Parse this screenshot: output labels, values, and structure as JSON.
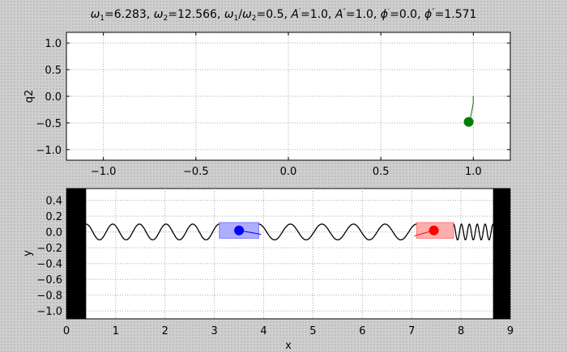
{
  "title": {
    "w1_sym": "ω",
    "w1_sub": "1",
    "w1_val": "=6.283, ",
    "w2_sym": "ω",
    "w2_sub": "2",
    "w2_val": "=12.566, ",
    "r_sym1": "ω",
    "r_sub1": "1",
    "r_slash": "/",
    "r_sym2": "ω",
    "r_sub2": "2",
    "r_val": "=0.5, ",
    "a1_sym": "A",
    "a1_prime": "′",
    "a1_val": "=1.0, ",
    "a2_sym": "A",
    "a2_prime": "″",
    "a2_val": "=1.0, ",
    "p1_sym": "ϕ",
    "p1_prime": "′",
    "p1_val": "=0.0, ",
    "p2_sym": "ϕ",
    "p2_prime": "″",
    "p2_val": "=1.571"
  },
  "chart_data": [
    {
      "type": "scatter",
      "name": "phase-plot",
      "xlabel": "",
      "ylabel": "q2",
      "xlim": [
        -1.2,
        1.2
      ],
      "ylim": [
        -1.2,
        1.2
      ],
      "grid": true,
      "xticks": [
        "−1.0",
        "−0.5",
        "0.0",
        "0.5",
        "1.0"
      ],
      "xtick_values": [
        -1.0,
        -0.5,
        0.0,
        0.5,
        1.0
      ],
      "yticks": [
        "1.0",
        "0.5",
        "0.0",
        "−0.5",
        "−1.0"
      ],
      "ytick_values": [
        1.0,
        0.5,
        0.0,
        -0.5,
        -1.0
      ],
      "trail": [
        [
          0.98,
          -0.48
        ],
        [
          0.985,
          -0.4
        ],
        [
          0.99,
          -0.32
        ],
        [
          0.995,
          -0.22
        ],
        [
          1.0,
          -0.12
        ],
        [
          1.0,
          0.0
        ]
      ],
      "point": [
        0.975,
        -0.48
      ],
      "point_color": "#008000",
      "trail_color": "#2e8b2e"
    },
    {
      "type": "line",
      "name": "chain-plot",
      "xlabel": "x",
      "ylabel": "y",
      "xlim": [
        0,
        9
      ],
      "ylim": [
        -1.1,
        0.55
      ],
      "grid": true,
      "xticks": [
        "0",
        "1",
        "2",
        "3",
        "4",
        "5",
        "6",
        "7",
        "8",
        "9"
      ],
      "xtick_values": [
        0,
        1,
        2,
        3,
        4,
        5,
        6,
        7,
        8,
        9
      ],
      "yticks": [
        "0.4",
        "0.2",
        "0.0",
        "−0.2",
        "−0.4",
        "−0.6",
        "−0.8",
        "−1.0"
      ],
      "ytick_values": [
        0.4,
        0.2,
        0.0,
        -0.2,
        -0.4,
        -0.6,
        -0.8,
        -1.0
      ],
      "left_wall": [
        0,
        0.4
      ],
      "right_wall": [
        8.65,
        9
      ],
      "spring1": {
        "x0": 0.4,
        "x1": 3.1,
        "coils": 5,
        "amp": 0.1
      },
      "spring2": {
        "x0": 3.9,
        "x1": 7.1,
        "coils": 5,
        "amp": 0.1
      },
      "spring3": {
        "x0": 7.85,
        "x1": 8.65,
        "coils": 5,
        "amp": 0.1
      },
      "mass1": {
        "x": 3.5,
        "y": 0.02,
        "box": [
          3.1,
          3.9,
          -0.08,
          0.12
        ],
        "color": "#0000ff",
        "box_color": "#a0a0ff",
        "arrow_to": [
          3.95,
          -0.03
        ]
      },
      "mass2": {
        "x": 7.45,
        "y": 0.02,
        "box": [
          7.1,
          7.85,
          -0.08,
          0.12
        ],
        "color": "#ff0000",
        "box_color": "#ffa0a0",
        "arrow_to": [
          7.05,
          -0.05
        ]
      }
    }
  ]
}
